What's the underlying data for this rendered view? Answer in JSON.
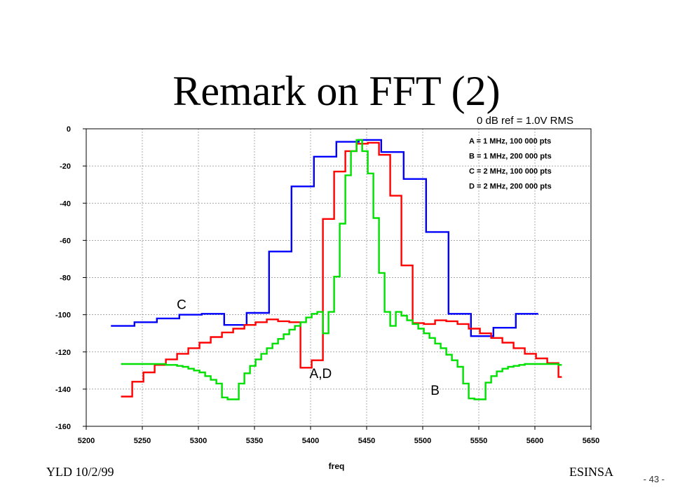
{
  "slide": {
    "title": "Remark on FFT (2)",
    "footer_left": "YLD 10/2/99",
    "footer_right": "ESINSA",
    "page_number": "- 43 -"
  },
  "chart_data": {
    "type": "line",
    "xlabel": "freq",
    "ylabel": "",
    "xlim": [
      5200,
      5650
    ],
    "ylim": [
      -160,
      0
    ],
    "xticks": [
      5200,
      5250,
      5300,
      5350,
      5400,
      5450,
      5500,
      5550,
      5600,
      5650
    ],
    "yticks": [
      0,
      -20,
      -40,
      -60,
      -80,
      -100,
      -120,
      -140,
      -160
    ],
    "grid": true,
    "reference_note": "0 dB ref = 1.0V RMS",
    "legend": {
      "placement": "top-right",
      "entries": [
        "A = 1 MHz, 100 000 pts",
        "B = 1 MHz, 200 000 pts",
        "C = 2 MHz, 100 000 pts",
        "D = 2 MHz, 200 000 pts"
      ]
    },
    "annotations": [
      {
        "text": "C",
        "x": 5285,
        "y": -97
      },
      {
        "text": "A,D",
        "x": 5409,
        "y": -134
      },
      {
        "text": "B",
        "x": 5511,
        "y": -143
      }
    ],
    "series": [
      {
        "color": "#0000ff",
        "step": true,
        "x": [
          5222,
          5243,
          5263,
          5283,
          5303,
          5323,
          5343,
          5363,
          5383,
          5403,
          5423,
          5443,
          5463,
          5483,
          5503,
          5523,
          5543,
          5563,
          5583,
          5600
        ],
        "y": [
          -106,
          -104,
          -102,
          -100,
          -99.5,
          -105.5,
          -99,
          -66,
          -31,
          -15,
          -7,
          -6,
          -12.5,
          -27,
          -55.5,
          -99.5,
          -111.5,
          -107,
          -99.5,
          -99.5
        ]
      },
      {
        "color": "#ff0000",
        "step": true,
        "x": [
          5231,
          5241,
          5251,
          5261,
          5271,
          5281,
          5291,
          5301,
          5311,
          5321,
          5331,
          5341,
          5351,
          5361,
          5371,
          5381,
          5391,
          5401,
          5411,
          5421,
          5431,
          5441,
          5451,
          5461,
          5471,
          5481,
          5491,
          5501,
          5511,
          5521,
          5531,
          5541,
          5551,
          5561,
          5571,
          5581,
          5591,
          5601,
          5611,
          5621
        ],
        "y": [
          -144,
          -136,
          -131,
          -127,
          -124,
          -121,
          -118,
          -115,
          -112,
          -109.5,
          -107.5,
          -105.5,
          -104,
          -102.5,
          -103.5,
          -104,
          -128.5,
          -124.5,
          -48.5,
          -23,
          -12,
          -8,
          -7.5,
          -14,
          -36,
          -73.5,
          -104.5,
          -105,
          -103,
          -103.5,
          -105,
          -107.5,
          -110,
          -112.5,
          -115,
          -118,
          -121,
          -123.5,
          -126,
          -133.5
        ]
      },
      {
        "color": "#00e000",
        "step": true,
        "x": [
          5231,
          5251,
          5271,
          5281,
          5286,
          5291,
          5296,
          5301,
          5306,
          5311,
          5316,
          5321,
          5326,
          5336,
          5341,
          5346,
          5351,
          5356,
          5361,
          5366,
          5371,
          5376,
          5381,
          5386,
          5391,
          5396,
          5401,
          5406,
          5411,
          5416,
          5421,
          5426,
          5431,
          5436,
          5441,
          5446,
          5451,
          5456,
          5461,
          5466,
          5471,
          5476,
          5481,
          5486,
          5491,
          5496,
          5501,
          5506,
          5511,
          5516,
          5521,
          5526,
          5531,
          5536,
          5541,
          5546,
          5556,
          5561,
          5566,
          5571,
          5576,
          5581,
          5586,
          5591,
          5596,
          5601,
          5611,
          5621
        ],
        "y": [
          -126.5,
          -126.5,
          -127,
          -127.5,
          -128,
          -129,
          -130,
          -131,
          -133,
          -135,
          -137,
          -144.5,
          -145.5,
          -137,
          -131.5,
          -127.5,
          -124,
          -121,
          -118,
          -115.5,
          -113,
          -110.5,
          -108,
          -106,
          -104,
          -101.5,
          -99.5,
          -98.5,
          -110,
          -98.5,
          -79.5,
          -51,
          -25,
          -12,
          -6,
          -12,
          -24,
          -48,
          -77.5,
          -98.5,
          -106,
          -98.5,
          -100.5,
          -103,
          -105,
          -107.5,
          -110,
          -112.5,
          -115.5,
          -118,
          -121.5,
          -124.5,
          -128,
          -137,
          -145,
          -145.5,
          -136.5,
          -133,
          -130.5,
          -129,
          -128,
          -127.5,
          -127,
          -126.5,
          -126.5,
          -126.5,
          -126.5,
          -127
        ]
      }
    ]
  }
}
